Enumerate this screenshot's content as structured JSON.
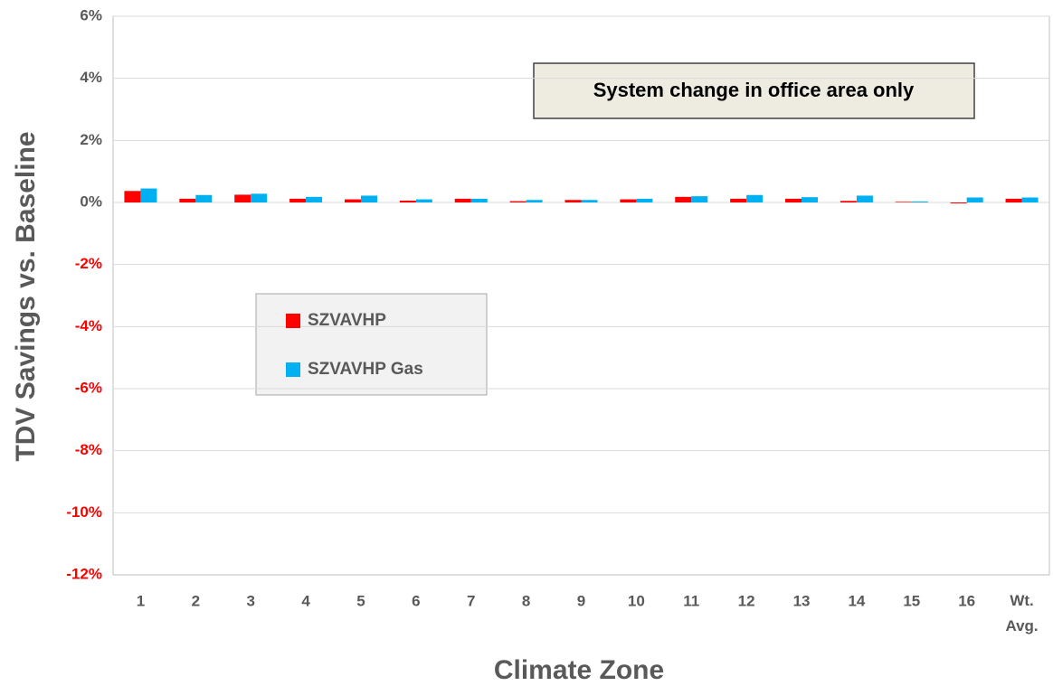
{
  "chart_data": {
    "type": "bar",
    "x_label": "Climate Zone",
    "y_label": "TDV Savings vs. Baseline",
    "annotation": "System change in office area only",
    "categories": [
      "1",
      "2",
      "3",
      "4",
      "5",
      "6",
      "7",
      "8",
      "9",
      "10",
      "11",
      "12",
      "13",
      "14",
      "15",
      "16",
      "Wt. Avg."
    ],
    "series": [
      {
        "name": "SZVAVHP",
        "color": "#ff0000",
        "values": [
          0.37,
          0.12,
          0.25,
          0.12,
          0.1,
          0.06,
          0.12,
          0.04,
          0.08,
          0.1,
          0.18,
          0.12,
          0.12,
          0.05,
          0.02,
          -0.03,
          0.12
        ]
      },
      {
        "name": "SZVAVHP Gas",
        "color": "#00b0f0",
        "values": [
          0.45,
          0.24,
          0.28,
          0.18,
          0.22,
          0.1,
          0.12,
          0.08,
          0.08,
          0.12,
          0.2,
          0.24,
          0.17,
          0.22,
          0.03,
          0.16,
          0.16
        ]
      }
    ],
    "ylim": [
      -12,
      6
    ],
    "yticks": [
      {
        "value": 6,
        "label": "6%"
      },
      {
        "value": 4,
        "label": "4%"
      },
      {
        "value": 2,
        "label": "2%"
      },
      {
        "value": 0,
        "label": "0%"
      },
      {
        "value": -2,
        "label": "-2%"
      },
      {
        "value": -4,
        "label": "-4%"
      },
      {
        "value": -6,
        "label": "-6%"
      },
      {
        "value": -8,
        "label": "-8%"
      },
      {
        "value": -10,
        "label": "-10%"
      },
      {
        "value": -12,
        "label": "-12%"
      }
    ],
    "grid": true
  }
}
